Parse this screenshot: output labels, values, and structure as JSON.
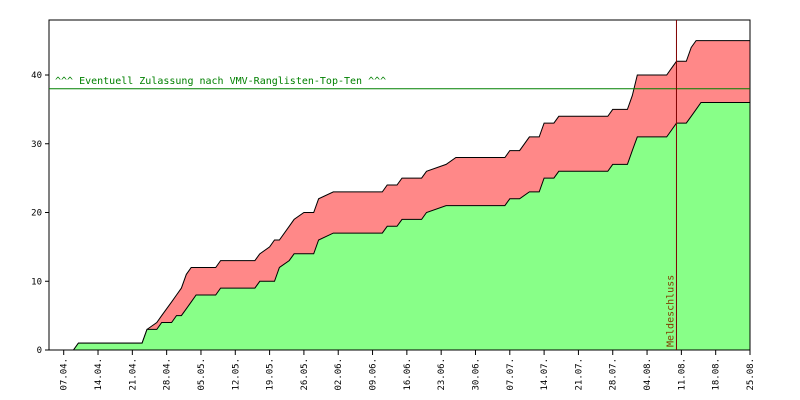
{
  "chart_data": {
    "type": "area",
    "title": "",
    "xlabel": "",
    "ylabel": "",
    "ylim": [
      0,
      48
    ],
    "yticks": [
      0,
      10,
      20,
      30,
      40
    ],
    "grid": false,
    "x_range": [
      "04.04.",
      "25.08."
    ],
    "x_ticks": [
      "07.04.",
      "14.04.",
      "21.04.",
      "28.04.",
      "05.05.",
      "12.05.",
      "19.05.",
      "26.05.",
      "02.06.",
      "09.06.",
      "16.06.",
      "23.06.",
      "30.06.",
      "07.07.",
      "14.07.",
      "21.07.",
      "28.07.",
      "04.08.",
      "11.08.",
      "18.08.",
      "25.08."
    ],
    "colors": {
      "lower": "#88ff88",
      "upper": "#ff8888",
      "outline": "#000000",
      "reference_line": "#008000",
      "deadline_line": "#800000",
      "deadline_text": "#804000"
    },
    "series": [
      {
        "layer": "lower",
        "x": [
          "09.04.",
          "10.04.",
          "23.04.",
          "24.04.",
          "26.04.",
          "27.04.",
          "29.04.",
          "30.04.",
          "01.05.",
          "02.05.",
          "03.05.",
          "04.05.",
          "08.05.",
          "09.05.",
          "16.05.",
          "17.05.",
          "19.05.",
          "20.05.",
          "21.05.",
          "23.05.",
          "24.05.",
          "26.05.",
          "28.05.",
          "29.05.",
          "01.06.",
          "11.06.",
          "12.06.",
          "14.06.",
          "15.06.",
          "19.06.",
          "20.06.",
          "24.06.",
          "26.06.",
          "06.07.",
          "07.07.",
          "09.07.",
          "11.07.",
          "13.07.",
          "14.07.",
          "16.07.",
          "17.07.",
          "27.07.",
          "28.07.",
          "31.07.",
          "01.08.",
          "02.08.",
          "03.08.",
          "04.08.",
          "08.08.",
          "09.08.",
          "10.08.",
          "12.08.",
          "13.08.",
          "14.08.",
          "15.08.",
          "25.08."
        ],
        "values": [
          0,
          1,
          1,
          3,
          3,
          4,
          4,
          5,
          5,
          6,
          7,
          8,
          8,
          9,
          9,
          10,
          10,
          10,
          12,
          13,
          14,
          14,
          14,
          16,
          17,
          17,
          18,
          18,
          19,
          19,
          20,
          21,
          21,
          21,
          22,
          22,
          23,
          23,
          25,
          25,
          26,
          26,
          27,
          27,
          29,
          31,
          31,
          31,
          31,
          32,
          33,
          33,
          34,
          35,
          36,
          36
        ]
      },
      {
        "layer": "upper",
        "x": [
          "09.04.",
          "10.04.",
          "23.04.",
          "24.04.",
          "26.04.",
          "27.04.",
          "29.04.",
          "30.04.",
          "01.05.",
          "02.05.",
          "03.05.",
          "04.05.",
          "08.05.",
          "09.05.",
          "16.05.",
          "17.05.",
          "19.05.",
          "20.05.",
          "21.05.",
          "23.05.",
          "24.05.",
          "26.05.",
          "28.05.",
          "29.05.",
          "01.06.",
          "11.06.",
          "12.06.",
          "14.06.",
          "15.06.",
          "19.06.",
          "20.06.",
          "24.06.",
          "26.06.",
          "06.07.",
          "07.07.",
          "09.07.",
          "11.07.",
          "13.07.",
          "14.07.",
          "16.07.",
          "17.07.",
          "27.07.",
          "28.07.",
          "31.07.",
          "01.08.",
          "02.08.",
          "03.08.",
          "04.08.",
          "08.08.",
          "09.08.",
          "10.08.",
          "12.08.",
          "13.08.",
          "14.08.",
          "15.08.",
          "25.08."
        ],
        "values": [
          0,
          1,
          1,
          3,
          4,
          5,
          7,
          8,
          9,
          11,
          12,
          12,
          12,
          13,
          13,
          14,
          15,
          16,
          16,
          18,
          19,
          20,
          20,
          22,
          23,
          23,
          24,
          24,
          25,
          25,
          26,
          27,
          28,
          28,
          29,
          29,
          31,
          31,
          33,
          33,
          34,
          34,
          35,
          35,
          37,
          40,
          40,
          40,
          40,
          41,
          42,
          42,
          44,
          45,
          45,
          45
        ]
      }
    ],
    "annotations": [
      {
        "kind": "horizontal-line",
        "y": 38,
        "label": "^^^ Eventuell Zulassung nach VMV-Ranglisten-Top-Ten ^^^"
      },
      {
        "kind": "vertical-line",
        "x": "10.08.",
        "label": "Meldeschluss"
      }
    ]
  }
}
